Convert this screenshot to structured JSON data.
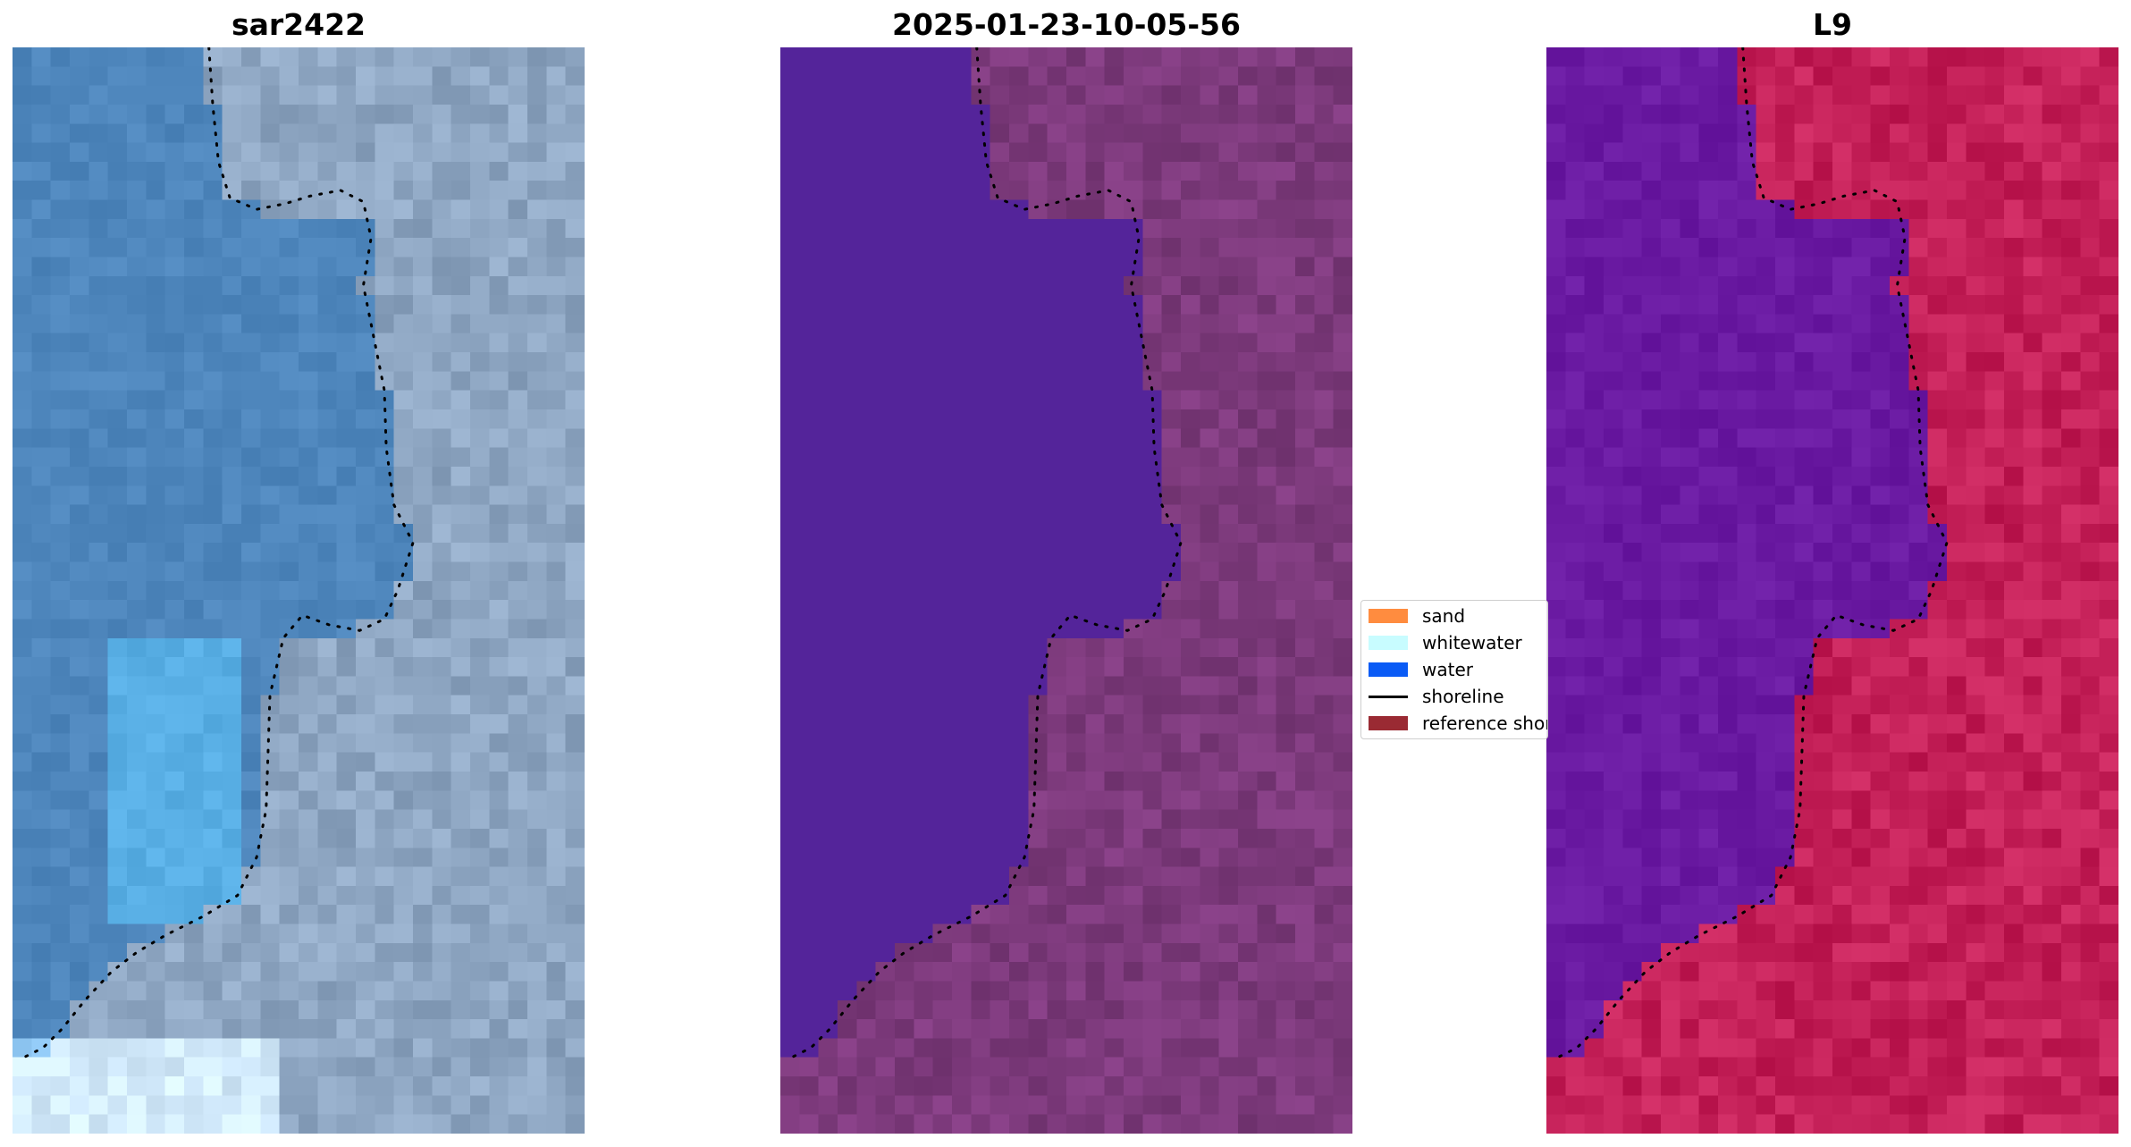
{
  "panels": [
    {
      "id": "rgb",
      "title": "sar2422"
    },
    {
      "id": "classified",
      "title": "2025-01-23-10-05-56"
    },
    {
      "id": "mndwi",
      "title": "L9"
    }
  ],
  "legend": {
    "items": [
      {
        "label": "sand",
        "color": "#ff8c3f",
        "kind": "patch"
      },
      {
        "label": "whitewater",
        "color": "#c8fcff",
        "kind": "patch"
      },
      {
        "label": "water",
        "color": "#0a5bf5",
        "kind": "patch"
      },
      {
        "label": "shoreline",
        "color": "#000000",
        "kind": "line"
      },
      {
        "label": "reference shoreline",
        "color": "#9a2a33",
        "kind": "patch"
      }
    ]
  },
  "colors": {
    "rgb_water": "#4e86bc",
    "rgb_land": "#8ea6c2",
    "class_water": "#54249a",
    "class_land": "#7d3a7c",
    "index_water": "#6a1aa2",
    "index_land": "#c42058",
    "shoreline": "#000000"
  }
}
